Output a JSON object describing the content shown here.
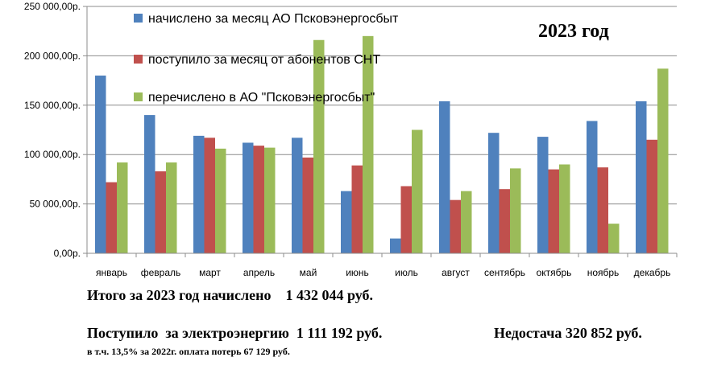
{
  "chart_data": {
    "type": "bar",
    "title": "2023 год",
    "categories": [
      "январь",
      "февраль",
      "март",
      "апрель",
      "май",
      "июнь",
      "июль",
      "август",
      "сентябрь",
      "октябрь",
      "ноябрь",
      "декабрь"
    ],
    "series": [
      {
        "name": "начислено за месяц АО Псковэнергосбыт",
        "color": "#4F81BD",
        "values": [
          180000,
          140000,
          119000,
          112000,
          117000,
          63000,
          15000,
          154000,
          122000,
          118000,
          134000,
          154000
        ]
      },
      {
        "name": "поступило за месяц от абонентов СНТ",
        "color": "#C0504D",
        "values": [
          72000,
          83000,
          117000,
          109000,
          97000,
          89000,
          68000,
          54000,
          65000,
          85000,
          87000,
          115000
        ]
      },
      {
        "name": "перечислено в АО \"Псковэнергосбыт\"",
        "color": "#9BBB59",
        "values": [
          92000,
          92000,
          106000,
          107000,
          216000,
          220000,
          125000,
          63000,
          86000,
          90000,
          30000,
          187000
        ]
      }
    ],
    "ylim": [
      0,
      250000
    ],
    "yticks": [
      0,
      50000,
      100000,
      150000,
      200000,
      250000
    ],
    "ytick_labels": [
      "0,00р.",
      "50 000,00р.",
      "100 000,00р.",
      "150 000,00р.",
      "200 000,00р.",
      "250 000,00р."
    ],
    "grid": true,
    "legend_position": "top-left, inside plot"
  },
  "summary": {
    "total_line": "Итого за 2023 год начислено    1 432 044 руб.",
    "received_line": "Поступило  за электроэнергию  1 111 192 руб.",
    "shortage_line": "Недостача 320 852 руб.",
    "note_line": "в т.ч. 13,5% за 2022г. оплата потерь 67 129 руб."
  }
}
